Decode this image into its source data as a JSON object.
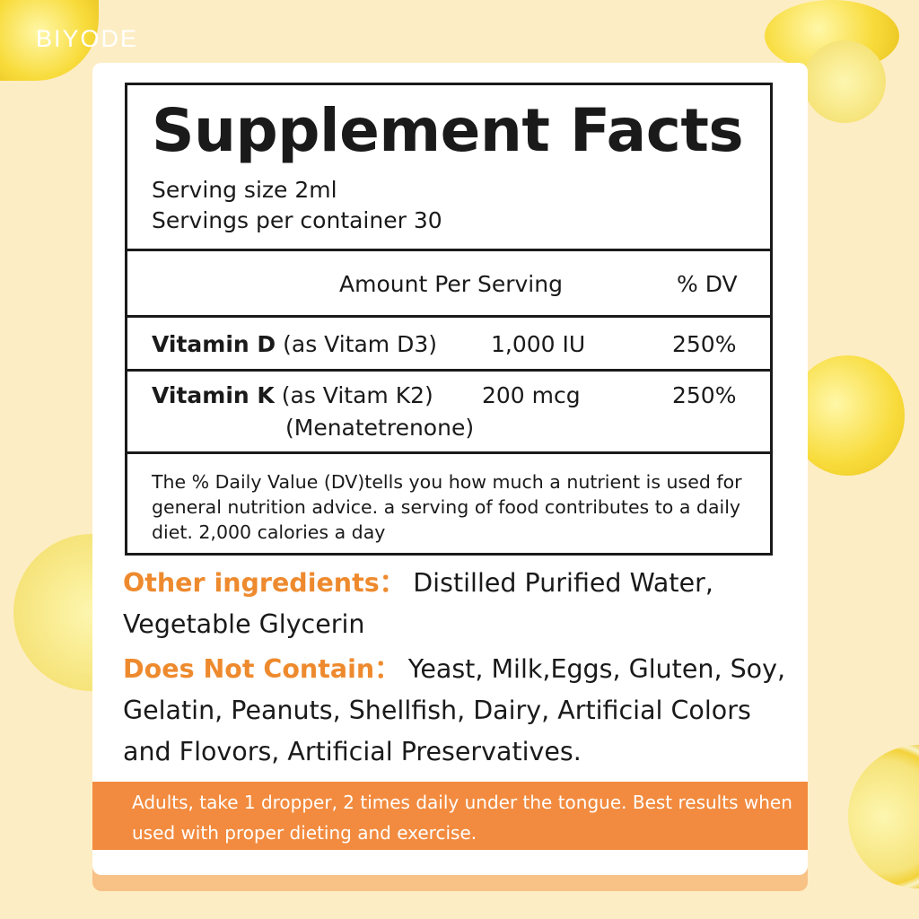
{
  "brand": "BIYODE",
  "facts": {
    "title": "Supplement Facts",
    "serving_size": "Serving size 2ml",
    "servings_per_container": "Servings per container 30",
    "header_amount": "Amount Per Serving",
    "header_dv": "% DV",
    "rows": [
      {
        "name": "Vitamin D",
        "source": "(as Vitam D3)",
        "source2": "",
        "amount": "1,000 IU",
        "dv": "250%"
      },
      {
        "name": "Vitamin K",
        "source": "(as Vitam K2)",
        "source2": "(Menatetrenone)",
        "amount": "200 mcg",
        "dv": "250%"
      }
    ],
    "footnote": "The % Daily Value (DV)tells you how much a nutrient is used for general nutrition advice. a serving of food contributes to a daily diet. 2,000 calories a day"
  },
  "other_ingredients": {
    "label": "Other ingredients：",
    "text": "Distilled Purified Water, Vegetable Glycerin"
  },
  "does_not_contain": {
    "label": "Does Not Contain：",
    "text": "Yeast, Milk,Eggs, Gluten, Soy, Gelatin, Peanuts, Shellfish, Dairy, Artificial Colors and Flovors, Artificial Preservatives."
  },
  "directions": "Adults, take 1 dropper, 2 times daily under the tongue. Best results when used with proper dieting and exercise.",
  "colors": {
    "background": "#fdedc4",
    "accent": "#ee8a2e",
    "band": "#f28b3f"
  }
}
